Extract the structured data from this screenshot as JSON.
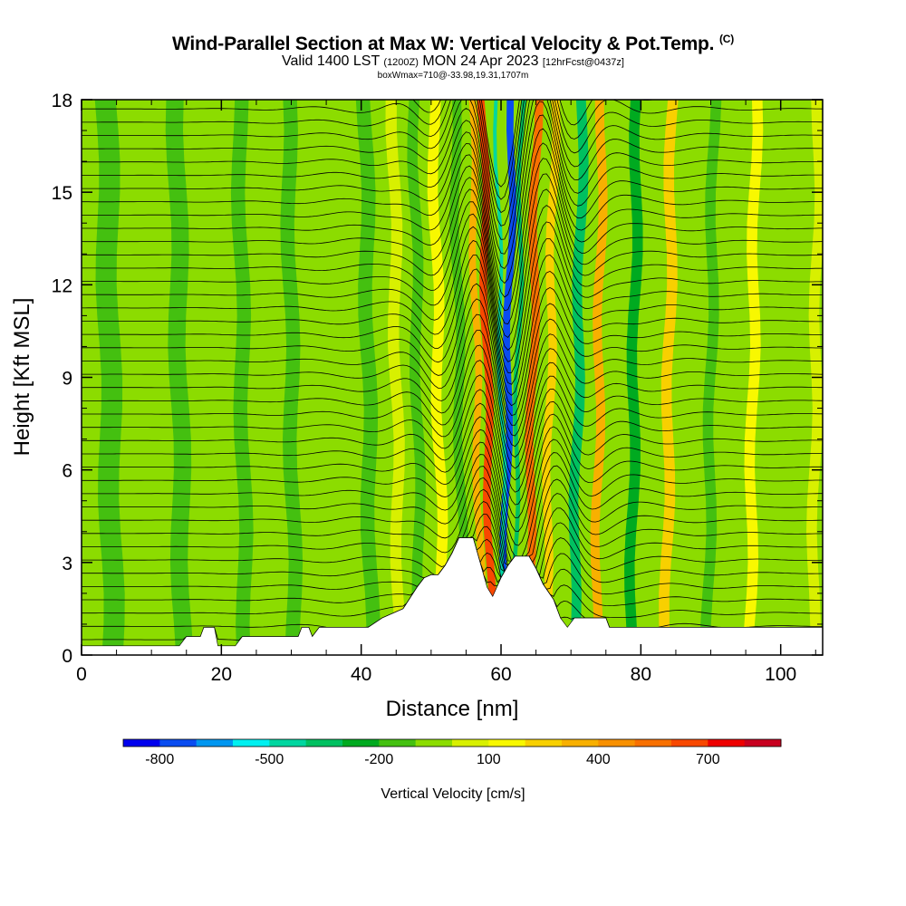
{
  "title": {
    "main": "Wind-Parallel Section at Max W: Vertical Velocity & Pot.Temp.",
    "copyright": "(C)",
    "valid_prefix": "Valid 1400 LST",
    "zulu": "(1200Z)",
    "date": "MON 24 Apr 2023",
    "forecast": "[12hrFcst@0437z]",
    "box_info": "boxWmax=710@-33.98,19.31,1707m"
  },
  "chart_data": {
    "type": "heatmap",
    "xlabel": "Distance [nm]",
    "ylabel": "Height [Kft MSL]",
    "xlim": [
      0,
      106
    ],
    "ylim": [
      0,
      18
    ],
    "xticks": [
      0,
      20,
      40,
      60,
      80,
      100
    ],
    "yticks": [
      0,
      3,
      6,
      9,
      12,
      15,
      18
    ],
    "colorbar": {
      "title": "Vertical Velocity [cm/s]",
      "labels": [
        "-800",
        "-500",
        "-200",
        "100",
        "400",
        "700"
      ],
      "label_values": [
        -800,
        -500,
        -200,
        100,
        400,
        700
      ],
      "bins": [
        -900,
        -800,
        -700,
        -600,
        -500,
        -400,
        -300,
        -200,
        -100,
        0,
        100,
        200,
        300,
        400,
        500,
        600,
        700,
        800,
        900
      ],
      "colors": [
        "#0000ee",
        "#0a4cf0",
        "#0096f0",
        "#00f0f0",
        "#00d6a0",
        "#00c060",
        "#00aa20",
        "#44c010",
        "#8cdc00",
        "#d8f000",
        "#f8f800",
        "#f8d000",
        "#f8b000",
        "#f89000",
        "#f87000",
        "#f84800",
        "#ee0000",
        "#c80020"
      ]
    },
    "vertical_velocity_bands": [
      {
        "x": 4,
        "w": 3.0,
        "value": -130
      },
      {
        "x": 9,
        "w": 2.5,
        "value": -40
      },
      {
        "x": 14,
        "w": 2.5,
        "value": -120
      },
      {
        "x": 19,
        "w": 2.0,
        "value": -20
      },
      {
        "x": 23,
        "w": 2.0,
        "value": -130
      },
      {
        "x": 30,
        "w": 2.0,
        "value": -120
      },
      {
        "x": 35,
        "w": 2.0,
        "value": -30
      },
      {
        "x": 41,
        "w": 2.0,
        "value": -140
      },
      {
        "x": 45,
        "w": 1.6,
        "value": 60
      },
      {
        "x": 48,
        "w": 1.5,
        "value": -120
      },
      {
        "x": 51,
        "w": 1.5,
        "value": 180
      },
      {
        "x": 54,
        "w": 1.3,
        "value": -170
      },
      {
        "x": 56.5,
        "w": 1.0,
        "value": 320
      },
      {
        "x": 58,
        "w": 1.1,
        "value": 620
      },
      {
        "x": 61,
        "w": 1.0,
        "value": -760
      },
      {
        "x": 60,
        "w": 0.5,
        "value": -420
      },
      {
        "x": 62.4,
        "w": 0.6,
        "value": -380
      },
      {
        "x": 64.5,
        "w": 1.2,
        "value": 560
      },
      {
        "x": 67,
        "w": 1.2,
        "value": 230
      },
      {
        "x": 71,
        "w": 1.4,
        "value": -380
      },
      {
        "x": 74,
        "w": 1.3,
        "value": 300
      },
      {
        "x": 79,
        "w": 1.5,
        "value": -260
      },
      {
        "x": 84,
        "w": 1.5,
        "value": 240
      },
      {
        "x": 90,
        "w": 1.5,
        "value": -150
      },
      {
        "x": 96,
        "w": 1.5,
        "value": 150
      },
      {
        "x": 101,
        "w": 1.6,
        "value": -90
      },
      {
        "x": 105,
        "w": 1.5,
        "value": 80
      }
    ],
    "terrain": [
      [
        0,
        0.3
      ],
      [
        14,
        0.3
      ],
      [
        15,
        0.6
      ],
      [
        17,
        0.6
      ],
      [
        17.5,
        0.9
      ],
      [
        19,
        0.9
      ],
      [
        19.5,
        0.3
      ],
      [
        22,
        0.3
      ],
      [
        23,
        0.6
      ],
      [
        31,
        0.6
      ],
      [
        31.5,
        0.9
      ],
      [
        32.5,
        0.9
      ],
      [
        33,
        0.6
      ],
      [
        34,
        0.9
      ],
      [
        41,
        0.9
      ],
      [
        43,
        1.2
      ],
      [
        46,
        1.5
      ],
      [
        48,
        2.2
      ],
      [
        49,
        2.5
      ],
      [
        50,
        2.6
      ],
      [
        51,
        2.6
      ],
      [
        52,
        2.9
      ],
      [
        53,
        3.3
      ],
      [
        54,
        3.8
      ],
      [
        56,
        3.8
      ],
      [
        57,
        3.0
      ],
      [
        58,
        2.2
      ],
      [
        58.8,
        1.9
      ],
      [
        60,
        2.5
      ],
      [
        61,
        2.9
      ],
      [
        62,
        3.2
      ],
      [
        64,
        3.2
      ],
      [
        65,
        2.8
      ],
      [
        66,
        2.3
      ],
      [
        67.5,
        1.8
      ],
      [
        68.5,
        1.2
      ],
      [
        69.5,
        0.9
      ],
      [
        70.5,
        1.2
      ],
      [
        75,
        1.2
      ],
      [
        75.5,
        0.9
      ],
      [
        106,
        0.9
      ]
    ],
    "potential_temperature_contours": {
      "count": 42,
      "lowest_height_kft": 0.5,
      "spacing_kft": 0.43,
      "wave_center_nm": 61
    }
  }
}
